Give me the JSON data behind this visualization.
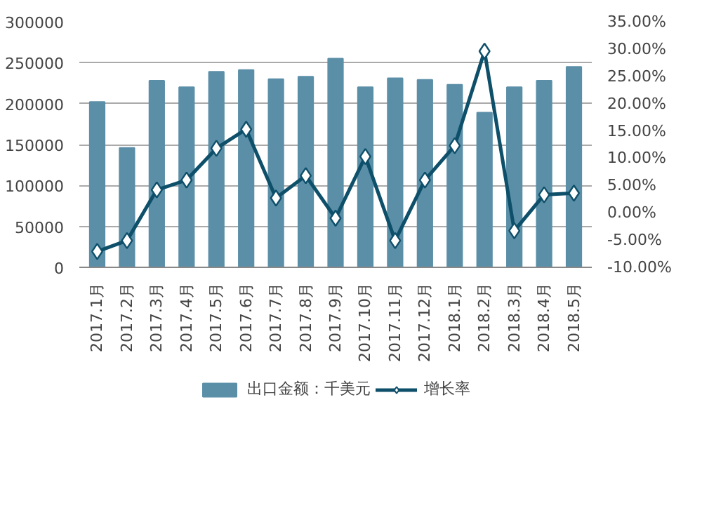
{
  "chart_data": {
    "type": "bar",
    "categories": [
      "2017.1月",
      "2017.2月",
      "2017.3月",
      "2017.4月",
      "2017.5月",
      "2017.6月",
      "2017.7月",
      "2017.8月",
      "2017.9月",
      "2017.10月",
      "2017.11月",
      "2017.12月",
      "2018.1月",
      "2018.2月",
      "2018.3月",
      "2018.4月",
      "2018.5月"
    ],
    "series": [
      {
        "name": "出口金额：千美元",
        "color": "#5b8fa8",
        "values": [
          202000,
          146000,
          228000,
          220000,
          239000,
          241000,
          230000,
          233000,
          255000,
          220000,
          231000,
          229000,
          223000,
          189000,
          220000,
          228000,
          245000
        ]
      },
      {
        "name": "增长率",
        "type": "line",
        "axis": "y2",
        "color": "#0e4f6a",
        "marker": "diamond",
        "values": [
          -7.1,
          -5.1,
          4.2,
          6.0,
          11.8,
          15.3,
          2.7,
          6.8,
          -1.0,
          10.3,
          -5.1,
          6.0,
          12.3,
          29.6,
          -3.3,
          3.3,
          3.6
        ]
      }
    ],
    "ylim": [
      0,
      300000
    ],
    "yticks": [
      0,
      50000,
      100000,
      150000,
      200000,
      250000,
      300000
    ],
    "y2lim": [
      -10,
      35
    ],
    "y2ticks": [
      {
        "value": -10,
        "label": "-10.00%"
      },
      {
        "value": -5,
        "label": "-5.00%"
      },
      {
        "value": 0,
        "label": "0.00%"
      },
      {
        "value": 5,
        "label": "5.00%"
      },
      {
        "value": 10,
        "label": "10.00%"
      },
      {
        "value": 15,
        "label": "15.00%"
      },
      {
        "value": 20,
        "label": "20.00%"
      },
      {
        "value": 25,
        "label": "25.00%"
      },
      {
        "value": 30,
        "label": "30.00%"
      },
      {
        "value": 35,
        "label": "35.00%"
      }
    ],
    "grid": "y",
    "legend": "bottom"
  }
}
